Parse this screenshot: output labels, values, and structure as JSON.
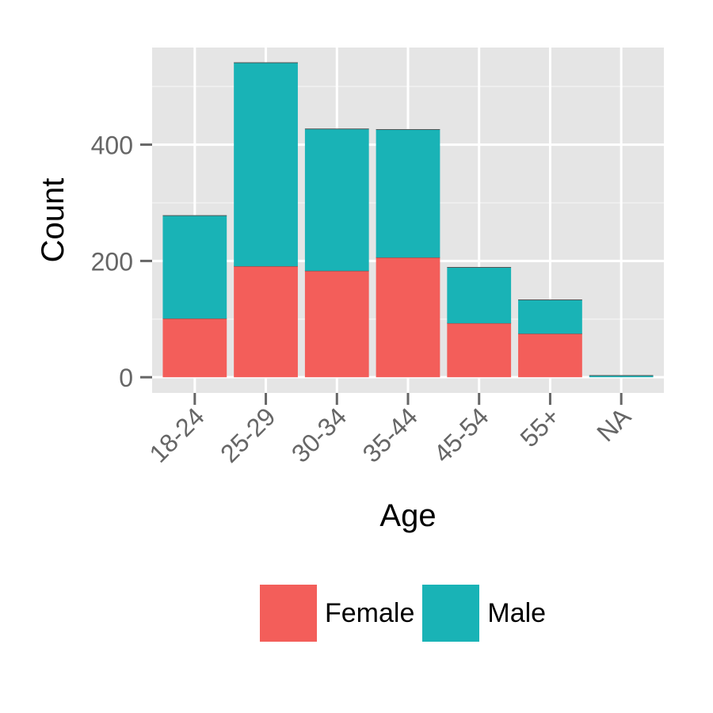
{
  "chart_data": {
    "type": "bar",
    "stacked": true,
    "title": "",
    "xlabel": "Age",
    "ylabel": "Count",
    "categories": [
      "18-24",
      "25-29",
      "30-34",
      "35-44",
      "45-54",
      "55+",
      "NA"
    ],
    "series": [
      {
        "name": "Female",
        "color": "#F35E5A",
        "values": [
          101,
          191,
          183,
          206,
          93,
          75,
          0
        ]
      },
      {
        "name": "Male",
        "color": "#19B3B6",
        "values": [
          177,
          350,
          244,
          220,
          96,
          58,
          3
        ]
      }
    ],
    "ylim": [
      -27,
      567
    ],
    "yticks": [
      0,
      200,
      400
    ],
    "grid": true,
    "legend_position": "bottom"
  },
  "legend": {
    "female_label": "Female",
    "male_label": "Male"
  }
}
